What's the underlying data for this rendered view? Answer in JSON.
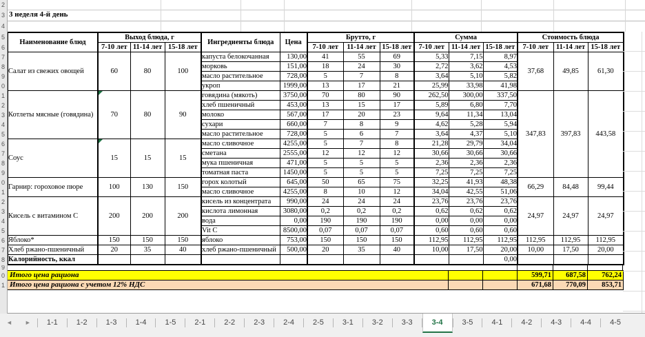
{
  "colors": {
    "accent_green": "#217346",
    "total_row_yellow": "#FFFF00",
    "total_vat_row_peach": "#FBD9B5",
    "marker_green": "#1F7244"
  },
  "sheet": {
    "week_label": "3 неделя 4-й день",
    "row_digits": [
      "2",
      "3",
      "4",
      "5",
      "6",
      "7",
      "8",
      "9",
      "0",
      "1",
      "2",
      "3",
      "4",
      "5",
      "6",
      "7",
      "8",
      "9",
      "0",
      "1",
      "2",
      "3",
      "4",
      "5",
      "6",
      "7",
      "8",
      "9",
      "0",
      "1"
    ]
  },
  "table": {
    "headers": {
      "dish": "Наименование блюд",
      "output": "Выход блюда, г",
      "ingredients": "Ингредиенты блюда",
      "price": "Цена",
      "gross": "Брутто, г",
      "sum": "Сумма",
      "cost": "Стоимость блюда",
      "age_groups": [
        "7-10 лет",
        "11-14 лет",
        "15-18 лет"
      ]
    },
    "groups": [
      {
        "dish": "Салат из свежих овощей",
        "output": [
          "60",
          "80",
          "100"
        ],
        "cost": [
          "37,68",
          "49,85",
          "61,30"
        ],
        "cost_span": 4,
        "rows": [
          {
            "ingredient": "капуста белокочанная",
            "price": "130,00",
            "gross": [
              "41",
              "55",
              "69"
            ],
            "sum": [
              "5,33",
              "7,15",
              "8,97"
            ]
          },
          {
            "ingredient": "морковь",
            "price": "151,00",
            "gross": [
              "18",
              "24",
              "30"
            ],
            "sum": [
              "2,72",
              "3,62",
              "4,53"
            ]
          },
          {
            "ingredient": "масло растительное",
            "price": "728,00",
            "gross": [
              "5",
              "7",
              "8"
            ],
            "sum": [
              "3,64",
              "5,10",
              "5,82"
            ]
          },
          {
            "ingredient": "укроп",
            "price": "1999,00",
            "gross": [
              "13",
              "17",
              "21"
            ],
            "sum": [
              "25,99",
              "33,98",
              "41,98"
            ]
          }
        ]
      },
      {
        "dish": "Котлеты мясные (говядина)",
        "marker": true,
        "output": [
          "70",
          "80",
          "90"
        ],
        "cost": [
          "347,83",
          "397,83",
          "443,58"
        ],
        "cost_span": 9,
        "rows": [
          {
            "ingredient": "говядина (мякоть)",
            "price": "3750,00",
            "gross": [
              "70",
              "80",
              "90"
            ],
            "sum": [
              "262,50",
              "300,00",
              "337,50"
            ]
          },
          {
            "ingredient": "хлеб пшеничный",
            "price": "453,00",
            "gross": [
              "13",
              "15",
              "17"
            ],
            "sum": [
              "5,89",
              "6,80",
              "7,70"
            ]
          },
          {
            "ingredient": "молоко",
            "price": "567,00",
            "gross": [
              "17",
              "20",
              "23"
            ],
            "sum": [
              "9,64",
              "11,34",
              "13,04"
            ]
          },
          {
            "ingredient": "сухари",
            "price": "660,00",
            "gross": [
              "7",
              "8",
              "9"
            ],
            "sum": [
              "4,62",
              "5,28",
              "5,94"
            ]
          },
          {
            "ingredient": "масло растительное",
            "price": "728,00",
            "gross": [
              "5",
              "6",
              "7"
            ],
            "sum": [
              "3,64",
              "4,37",
              "5,10"
            ]
          }
        ]
      },
      {
        "dish": "Соус",
        "marker": true,
        "output": [
          "15",
          "15",
          "15"
        ],
        "cost": null,
        "cost_span": 0,
        "rows": [
          {
            "ingredient": "масло сливочное",
            "price": "4255,00",
            "gross": [
              "5",
              "7",
              "8"
            ],
            "sum": [
              "21,28",
              "29,79",
              "34,04"
            ]
          },
          {
            "ingredient": "сметана",
            "price": "2555,00",
            "gross": [
              "12",
              "12",
              "12"
            ],
            "sum": [
              "30,66",
              "30,66",
              "30,66"
            ]
          },
          {
            "ingredient": "мука пшеничная",
            "price": "471,00",
            "gross": [
              "5",
              "5",
              "5"
            ],
            "sum": [
              "2,36",
              "2,36",
              "2,36"
            ]
          },
          {
            "ingredient": "томатная паста",
            "price": "1450,00",
            "gross": [
              "5",
              "5",
              "5"
            ],
            "sum": [
              "7,25",
              "7,25",
              "7,25"
            ]
          }
        ]
      },
      {
        "dish": "Гарнир: гороховое пюре",
        "output": [
          "100",
          "130",
          "150"
        ],
        "cost": [
          "66,29",
          "84,48",
          "99,44"
        ],
        "cost_span": 2,
        "rows": [
          {
            "ingredient": "горох колотый",
            "price": "645,00",
            "gross": [
              "50",
              "65",
              "75"
            ],
            "sum": [
              "32,25",
              "41,93",
              "48,38"
            ]
          },
          {
            "ingredient": "масло сливочное",
            "price": "4255,00",
            "gross": [
              "8",
              "10",
              "12"
            ],
            "sum": [
              "34,04",
              "42,55",
              "51,06"
            ]
          }
        ]
      },
      {
        "dish": "Кисель с витамином С",
        "output": [
          "200",
          "200",
          "200"
        ],
        "cost": [
          "24,97",
          "24,97",
          "24,97"
        ],
        "cost_span": 4,
        "rows": [
          {
            "ingredient": "кисель из концентрата",
            "price": "990,00",
            "gross": [
              "24",
              "24",
              "24"
            ],
            "sum": [
              "23,76",
              "23,76",
              "23,76"
            ]
          },
          {
            "ingredient": "кислота лимонная",
            "price": "3080,00",
            "gross": [
              "0,2",
              "0,2",
              "0,2"
            ],
            "sum": [
              "0,62",
              "0,62",
              "0,62"
            ]
          },
          {
            "ingredient": "вода",
            "price": "0,00",
            "gross": [
              "190",
              "190",
              "190"
            ],
            "sum": [
              "0,00",
              "0,00",
              "0,00"
            ]
          },
          {
            "ingredient": "Vit C",
            "price": "8500,00",
            "gross": [
              "0,07",
              "0,07",
              "0,07"
            ],
            "sum": [
              "0,60",
              "0,60",
              "0,60"
            ]
          }
        ]
      },
      {
        "dish": "Яблоко*",
        "output": [
          "150",
          "150",
          "150"
        ],
        "cost": [
          "112,95",
          "112,95",
          "112,95"
        ],
        "cost_span": 1,
        "rows": [
          {
            "ingredient": "яблоко",
            "price": "753,00",
            "gross": [
              "150",
              "150",
              "150"
            ],
            "sum": [
              "112,95",
              "112,95",
              "112,95"
            ]
          }
        ]
      },
      {
        "dish": "Хлеб ржано-пшеничный",
        "output": [
          "20",
          "35",
          "40"
        ],
        "cost": [
          "10,00",
          "17,50",
          "20,00"
        ],
        "cost_span": 1,
        "rows": [
          {
            "ingredient": "хлеб ржано-пшеничный",
            "price": "500,00",
            "gross": [
              "20",
              "35",
              "40"
            ],
            "sum": [
              "10,00",
              "17,50",
              "20,00"
            ]
          }
        ]
      },
      {
        "dish": "Калорийность, ккал",
        "bold": true,
        "output": [
          "",
          "",
          ""
        ],
        "cost": [
          "",
          "",
          ""
        ],
        "cost_span": 1,
        "rows": [
          {
            "ingredient": "",
            "price": "",
            "gross": [
              "",
              "",
              ""
            ],
            "sum": [
              "",
              "",
              "0,00"
            ]
          }
        ]
      }
    ]
  },
  "totals": [
    {
      "label": "Итого цена рациона",
      "values": [
        "599,71",
        "687,58",
        "762,24"
      ],
      "bg": "#FFFF00"
    },
    {
      "label": "Итого цена рациона с учетом 12% НДС",
      "values": [
        "671,68",
        "770,09",
        "853,71"
      ],
      "bg": "#FBD9B5"
    }
  ],
  "tabs": {
    "nav_prev": "◄",
    "nav_next": "►",
    "items": [
      "1-1",
      "1-2",
      "1-3",
      "1-4",
      "1-5",
      "2-1",
      "2-2",
      "2-3",
      "2-4",
      "2-5",
      "3-1",
      "3-2",
      "3-3",
      "3-4",
      "3-5",
      "4-1",
      "4-2",
      "4-3",
      "4-4",
      "4-5"
    ],
    "active": "3-4"
  }
}
